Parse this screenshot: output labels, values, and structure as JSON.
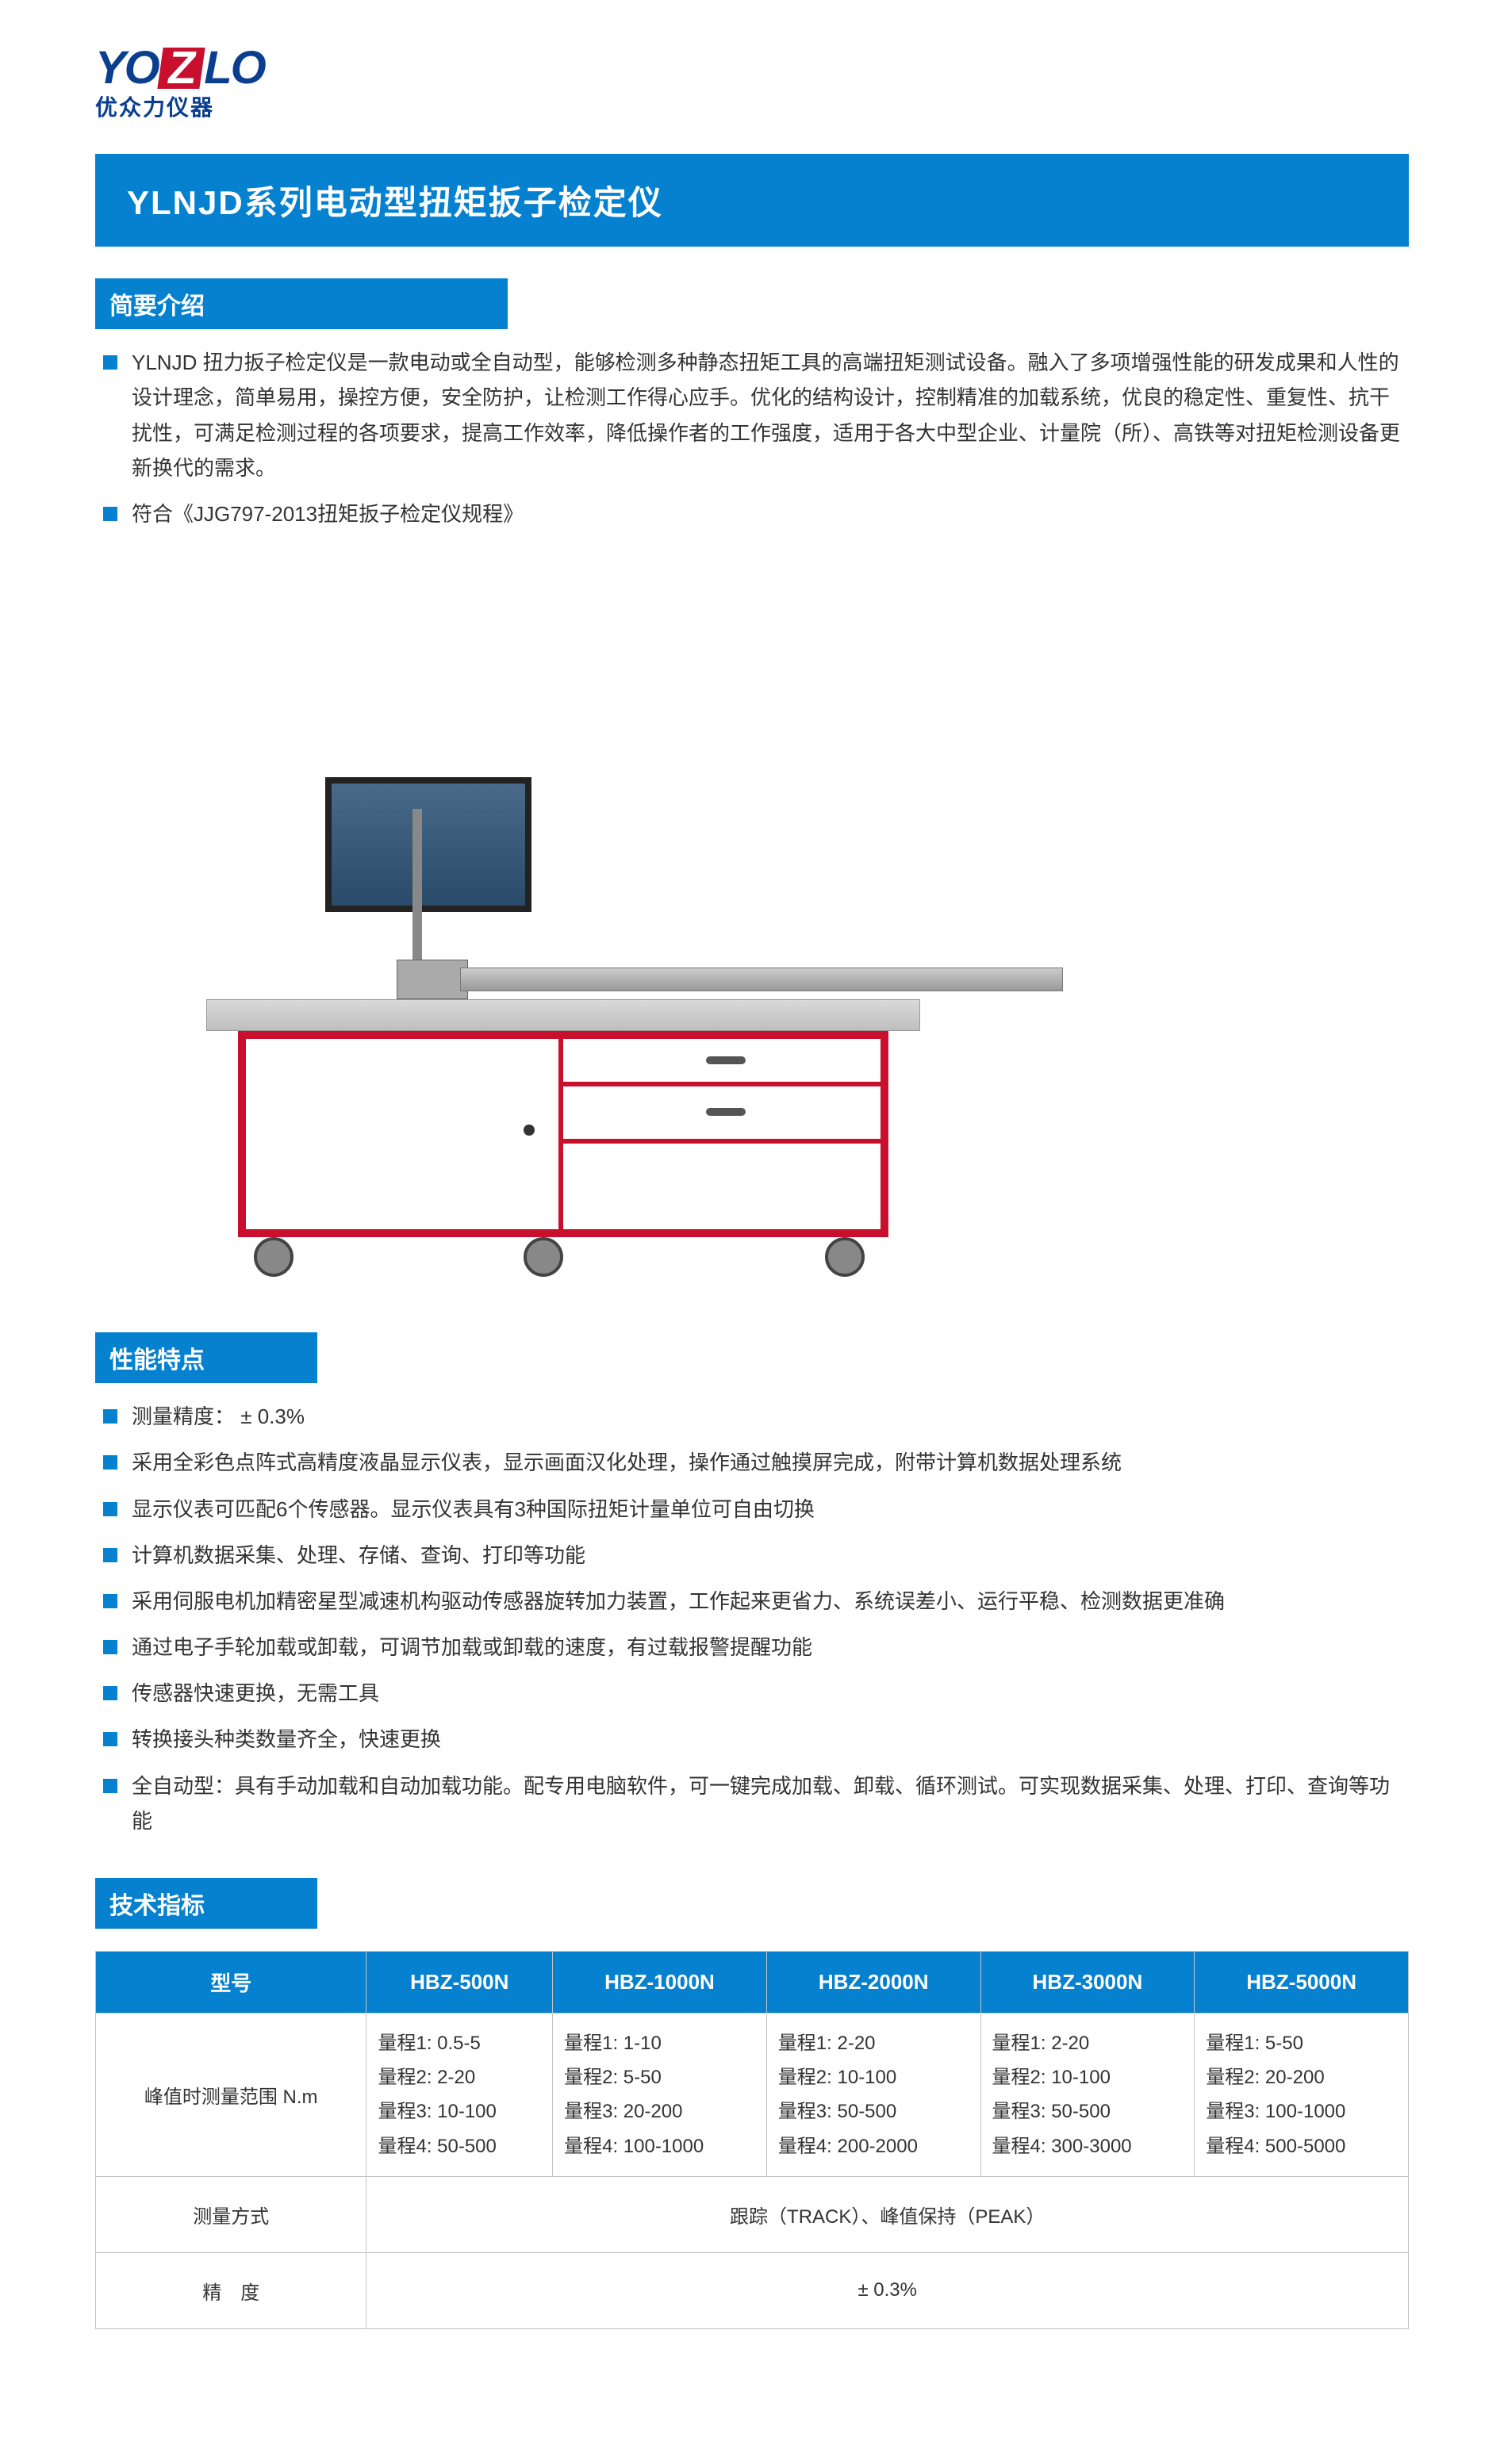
{
  "logo": {
    "brand": "YOZLO",
    "subtitle": "优众力仪器"
  },
  "page_title": "YLNJD系列电动型扭矩扳子检定仪",
  "intro": {
    "heading": "简要介绍",
    "paragraph_start": "YLNJD 扭力扳子检定仪是一款电动或全自动型，能够检测多种静态扭矩工具的高端扭矩测试设备。融入了多项增强性能的研发成果和人性的设计理念，简单易用，操控方便，安全防护，让检测工作得心应手。优化的结构设计，控制精准的加载系统，优良的稳定性、重复性、抗干扰性，可满足检测过程的各项要求，提高工作效率，降低操作者的工作强度，适用于各大中型企业、计量院（所）、高铁等对扭矩检测设备更新换代的需求。",
    "standard": "符合《JJG797-2013扭矩扳子检定仪规程》"
  },
  "features": {
    "heading": "性能特点",
    "items": [
      "测量精度： ± 0.3%",
      "采用全彩色点阵式高精度液晶显示仪表，显示画面汉化处理，操作通过触摸屏完成，附带计算机数据处理系统",
      "显示仪表可匹配6个传感器。显示仪表具有3种国际扭矩计量单位可自由切换",
      "计算机数据采集、处理、存储、查询、打印等功能",
      "采用伺服电机加精密星型减速机构驱动传感器旋转加力装置，工作起来更省力、系统误差小、运行平稳、检测数据更准确",
      "通过电子手轮加载或卸载，可调节加载或卸载的速度，有过载报警提醒功能",
      "传感器快速更换，无需工具",
      "转换接头种类数量齐全，快速更换",
      "全自动型：具有手动加载和自动加载功能。配专用电脑软件，可一键完成加载、卸载、循环测试。可实现数据采集、处理、打印、查询等功能"
    ]
  },
  "specs": {
    "heading": "技术指标",
    "columns": [
      "型号",
      "HBZ-500N",
      "HBZ-1000N",
      "HBZ-2000N",
      "HBZ-3000N",
      "HBZ-5000N"
    ],
    "range_label": "峰值时测量范围  N.m",
    "ranges": [
      [
        "量程1: 0.5-5",
        "量程2: 2-20",
        "量程3: 10-100",
        "量程4: 50-500"
      ],
      [
        "量程1: 1-10",
        "量程2: 5-50",
        "量程3: 20-200",
        "量程4: 100-1000"
      ],
      [
        "量程1: 2-20",
        "量程2: 10-100",
        "量程3: 50-500",
        "量程4: 200-2000"
      ],
      [
        "量程1: 2-20",
        "量程2: 10-100",
        "量程3: 50-500",
        "量程4: 300-3000"
      ],
      [
        "量程1: 5-50",
        "量程2: 20-200",
        "量程3: 100-1000",
        "量程4: 500-5000"
      ]
    ],
    "method_label": "测量方式",
    "method_value": "跟踪（TRACK）、峰值保持（PEAK）",
    "precision_label": "精　度",
    "precision_value": "± 0.3%"
  },
  "colors": {
    "primary_blue": "#0581d0",
    "logo_blue": "#0a3f8f",
    "accent_red": "#c8102e",
    "border_gray": "#c4c4c4"
  }
}
